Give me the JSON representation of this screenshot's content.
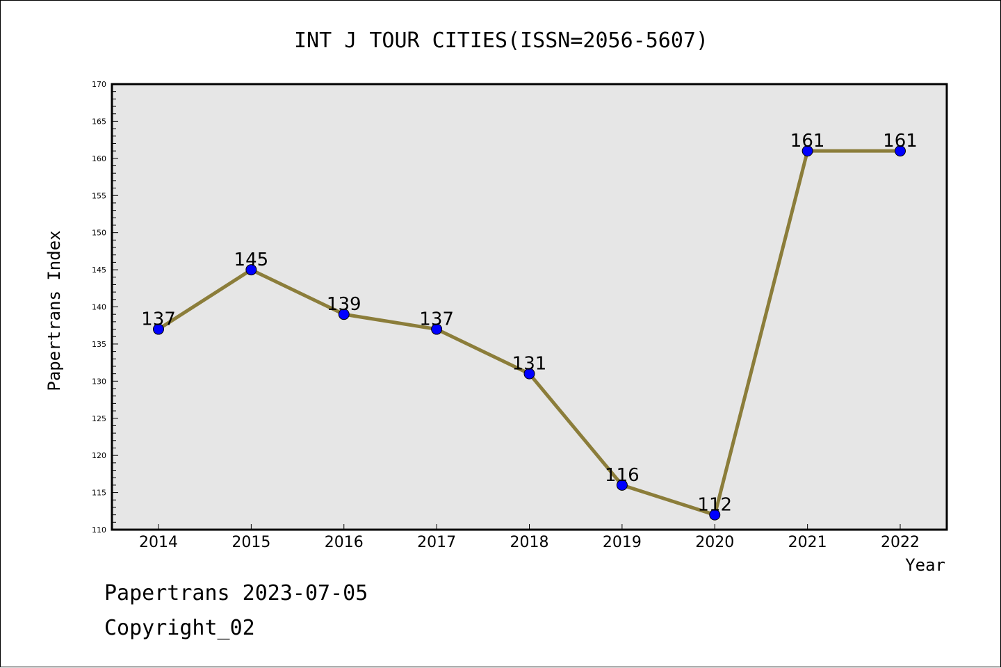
{
  "chart_data": {
    "type": "line",
    "title": "INT J TOUR CITIES(ISSN=2056-5607)",
    "xlabel": "Year",
    "ylabel": "Papertrans Index",
    "categories": [
      "2014",
      "2015",
      "2016",
      "2017",
      "2018",
      "2019",
      "2020",
      "2021",
      "2022"
    ],
    "series": [
      {
        "values": [
          137,
          145,
          139,
          137,
          131,
          116,
          112,
          161,
          161
        ]
      }
    ],
    "data_labels": [
      "137",
      "145",
      "139",
      "137",
      "131",
      "116",
      "112",
      "161",
      "161"
    ],
    "ylim": [
      110,
      170
    ],
    "yticks": [
      110,
      115,
      120,
      125,
      130,
      135,
      140,
      145,
      150,
      155,
      160,
      165,
      170
    ],
    "ytick_labels": [
      "110",
      "115",
      "120",
      "125",
      "130",
      "135",
      "140",
      "145",
      "150",
      "155",
      "160",
      "165",
      "170"
    ],
    "grid": false,
    "colors": {
      "line": "#8B7D3A",
      "marker": "#0000FF",
      "plot_background": "#E6E6E6"
    }
  },
  "footer": {
    "line1": "Papertrans 2023-07-05",
    "line2": "Copyright_02"
  }
}
